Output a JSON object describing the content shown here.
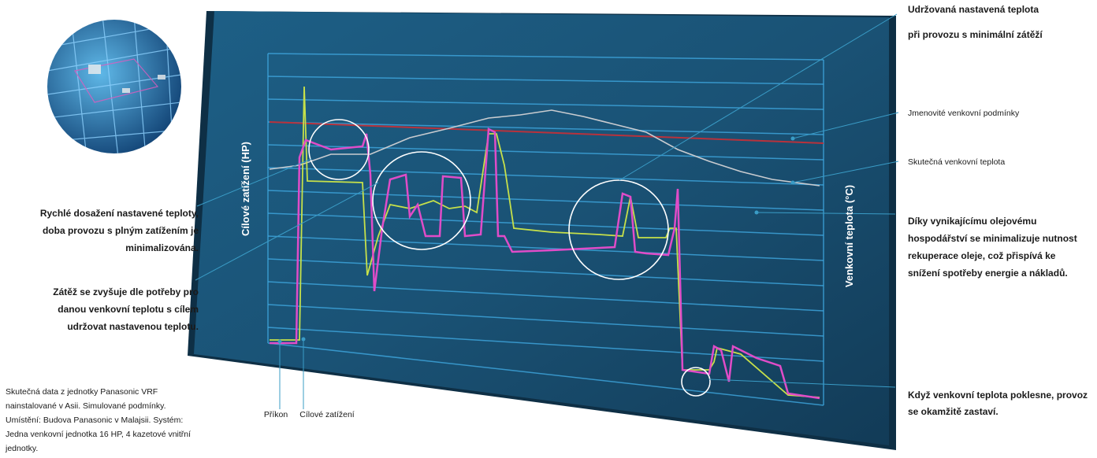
{
  "axis_labels": {
    "left": "Cílové zatížení (HP)",
    "right": "Venkovní teplota (°C)"
  },
  "annotations": {
    "maintained_temperature": [
      "Udržovaná nastavená teplota",
      "při provozu s minimální zátěží"
    ],
    "rated_outdoor": [
      "Jmenovité venkovní podmínky"
    ],
    "actual_outdoor": [
      "Skutečná venkovní teplota"
    ],
    "oil_management": [
      "Díky vynikajícímu olejovému",
      "hospodářství se minimalizuje nutnost",
      "rekuperace oleje, což přispívá ke",
      "snížení spotřeby energie a nákladů."
    ],
    "stop": [
      "Když venkovní teplota poklesne, provoz",
      "se okamžitě zastaví."
    ],
    "fast_setpoint": [
      "Rychlé dosažení nastavené teploty,",
      "doba provozu s plným zatížením je",
      "minimalizována."
    ],
    "load_increase": [
      "Zátěž se zvyšuje dle potřeby pro",
      "danou venkovní teplotu s cílem",
      "udržovat nastavenou teplotu."
    ]
  },
  "legend": [
    "Příkon",
    "Cílové zatížení"
  ],
  "footnote": [
    "Skutečná data z jednotky Panasonic VRF",
    "nainstalované v Asii. Simulované podmínky.",
    "Umístění: Budova Panasonic v Malajsii. Systém:",
    "Jedna venkovní jednotka 16 HP, 4 kazetové vnitřní",
    "jednotky."
  ]
}
